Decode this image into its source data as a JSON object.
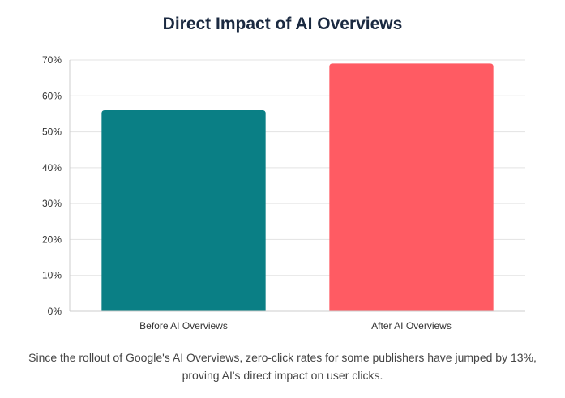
{
  "chart_data": {
    "type": "bar",
    "title": "Direct Impact of AI Overviews",
    "xlabel": "",
    "ylabel": "",
    "categories": [
      "Before AI Overviews",
      "After AI Overviews"
    ],
    "values": [
      56,
      69
    ],
    "value_unit": "%",
    "ylim": [
      0,
      70
    ],
    "yticks": [
      0,
      10,
      20,
      30,
      40,
      50,
      60,
      70
    ],
    "ytick_labels": [
      "0%",
      "10%",
      "20%",
      "30%",
      "40%",
      "50%",
      "60%",
      "70%"
    ],
    "bar_colors": [
      "#0a7f85",
      "#ff5b63"
    ],
    "grid": true,
    "legend": "none"
  },
  "caption": "Since the rollout of Google's AI Overviews, zero-click rates for some publishers have jumped by 13%, proving AI's direct impact on user clicks."
}
